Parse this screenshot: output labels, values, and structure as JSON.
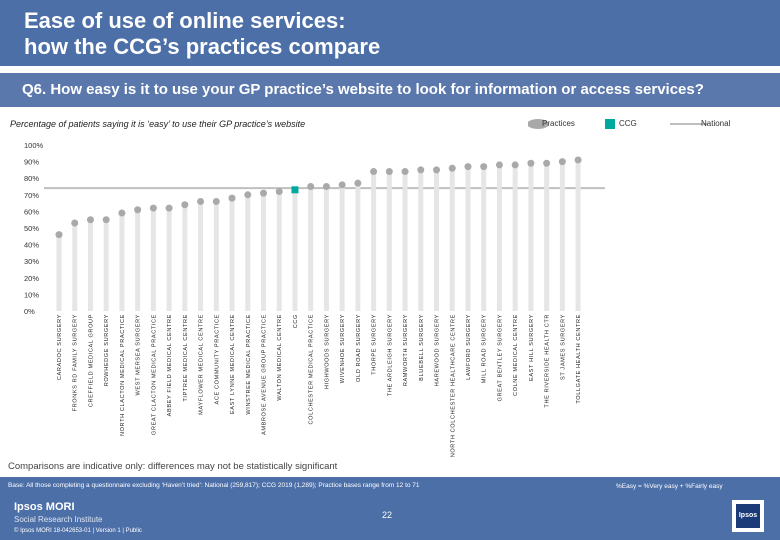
{
  "header": {
    "title_line1": "Ease of use of online services:",
    "title_line2": "how the CCG’s practices compare",
    "question": "Q6. How easy is it to use your GP practice’s website to look for information or access services?"
  },
  "subtitle": "Percentage of patients saying it is ‘easy’ to use their GP practice’s website",
  "legend": {
    "practices": "Practices",
    "ccg": "CCG",
    "national": "National"
  },
  "colors": {
    "practice_dot": "#a9a9a9",
    "ccg_marker": "#00a99d",
    "national_line": "#bfbfbf",
    "header_bg": "#4c6fa8"
  },
  "chart_data": {
    "type": "scatter",
    "title": "Percentage of patients saying it is ‘easy’ to use their GP practice’s website",
    "ylim": [
      0,
      100
    ],
    "yticks": [
      "0%",
      "10%",
      "20%",
      "30%",
      "40%",
      "50%",
      "60%",
      "70%",
      "80%",
      "90%",
      "100%"
    ],
    "national": 74,
    "categories": [
      "CARADOC SURGERY",
      "FRONKS RD FAMILY SURGERY",
      "CREFFIELD MEDICAL GROUP",
      "ROWHEDGE SURGERY",
      "NORTH CLACTON MEDICAL PRACTICE",
      "WEST MERSEA SURGERY",
      "GREAT CLACTON MEDICAL PRACTICE",
      "ABBEY FIELD MEDICAL CENTRE",
      "TIPTREE MEDICAL CENTRE",
      "MAYFLOWER MEDICAL CENTRE",
      "ACE COMMUNITY PRACTICE",
      "EAST LYNNE MEDICAL CENTRE",
      "WINSTREE MEDICAL PRACTICE",
      "AMBROSE AVENUE GROUP PRACTICE",
      "WALTON MEDICAL CENTRE",
      "CCG",
      "COLCHESTER MEDICAL PRACTICE",
      "HIGHWOODS SURGERY",
      "WIVENHOE SURGERY",
      "OLD ROAD SURGERY",
      "THORPE SURGERY",
      "THE ARDLEIGH SURGERY",
      "RAMWORTH SURGERY",
      "BLUEBELL SURGERY",
      "HAREWOOD SURGERY",
      "NORTH COLCHESTER HEALTHCARE CENTRE",
      "LAWFORD SURGERY",
      "MILL ROAD SURGERY",
      "GREAT BENTLEY SURGERY",
      "COLNE MEDICAL CENTRE",
      "EAST HILL SURGERY",
      "THE RIVERSIDE HEALTH CTR",
      "ST JAMES SURGERY",
      "TOLLGATE HEALTH CENTRE"
    ],
    "values": [
      46,
      53,
      55,
      55,
      59,
      61,
      62,
      62,
      64,
      66,
      66,
      68,
      70,
      71,
      72,
      73,
      75,
      75,
      76,
      77,
      84,
      84,
      84,
      85,
      85,
      86,
      87,
      87,
      88,
      88,
      89,
      89,
      90,
      91
    ],
    "ccg_index": 15,
    "ccg_value": 73
  },
  "note": "Comparisons are indicative only: differences may not be statistically significant",
  "footer": {
    "base": "Base: All those completing a questionnaire excluding ‘Haven’t tried’: National (259,817); CCG 2019 (1,289); Practice bases range from 12 to 71",
    "easy_def": "%Easy = %Very easy + %Fairly easy",
    "brand": "Ipsos MORI",
    "brand_sub": "Social Research Institute",
    "copyright": "© Ipsos MORI     18-042653-01 | Version 1 | Public",
    "page": "22",
    "logo": "Ipsos"
  }
}
